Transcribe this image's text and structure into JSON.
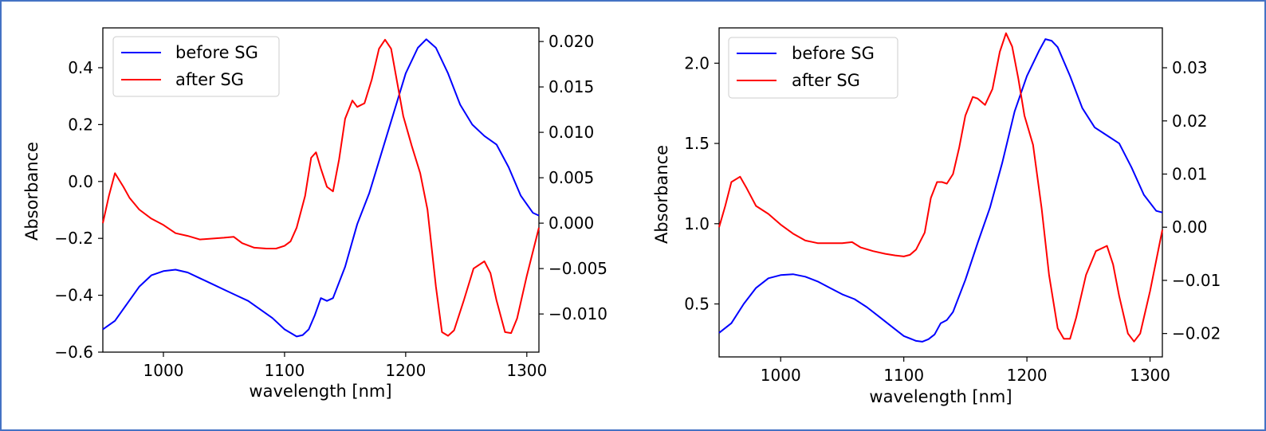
{
  "colors": {
    "frame": "#4472c4",
    "before": "#0000ff",
    "after": "#ff0000"
  },
  "chart_data": [
    {
      "type": "line",
      "title": "",
      "xlabel": "wavelength [nm]",
      "ylabel": "Absorbance",
      "y2label": "",
      "xlim": [
        950,
        1310
      ],
      "ylim": [
        -0.6,
        0.54
      ],
      "y2lim": [
        -0.0142,
        0.0215
      ],
      "x_ticks": [
        1000,
        1100,
        1200,
        1300
      ],
      "y_ticks": [
        -0.6,
        -0.4,
        -0.2,
        0.0,
        0.2,
        0.4
      ],
      "y_tick_labels": [
        "−0.6",
        "−0.4",
        "−0.2",
        "0.0",
        "0.2",
        "0.4"
      ],
      "y2_ticks": [
        -0.01,
        -0.005,
        0.0,
        0.005,
        0.01,
        0.015,
        0.02
      ],
      "y2_tick_labels": [
        "−0.010",
        "−0.005",
        "0.000",
        "0.005",
        "0.010",
        "0.015",
        "0.020"
      ],
      "legend": {
        "position": "top-left",
        "entries": [
          "before SG",
          "after SG"
        ]
      },
      "grid": false,
      "series": [
        {
          "name": "before SG",
          "axis": "left",
          "x": [
            950,
            960,
            970,
            980,
            990,
            1000,
            1010,
            1020,
            1030,
            1040,
            1050,
            1060,
            1070,
            1080,
            1090,
            1100,
            1110,
            1115,
            1120,
            1125,
            1130,
            1135,
            1140,
            1150,
            1160,
            1170,
            1180,
            1190,
            1200,
            1210,
            1217,
            1225,
            1235,
            1245,
            1255,
            1265,
            1275,
            1285,
            1295,
            1305,
            1310
          ],
          "y": [
            -0.52,
            -0.49,
            -0.43,
            -0.37,
            -0.33,
            -0.315,
            -0.31,
            -0.32,
            -0.34,
            -0.36,
            -0.38,
            -0.4,
            -0.42,
            -0.45,
            -0.48,
            -0.52,
            -0.545,
            -0.54,
            -0.52,
            -0.47,
            -0.41,
            -0.42,
            -0.41,
            -0.3,
            -0.15,
            -0.04,
            0.1,
            0.24,
            0.38,
            0.47,
            0.5,
            0.47,
            0.38,
            0.27,
            0.2,
            0.16,
            0.13,
            0.05,
            -0.05,
            -0.11,
            -0.12
          ]
        },
        {
          "name": "after SG",
          "axis": "right",
          "x": [
            950,
            955,
            960,
            967,
            972,
            980,
            990,
            1000,
            1010,
            1020,
            1030,
            1040,
            1050,
            1058,
            1065,
            1075,
            1085,
            1093,
            1100,
            1105,
            1110,
            1117,
            1122,
            1126,
            1130,
            1135,
            1140,
            1145,
            1150,
            1156,
            1160,
            1166,
            1172,
            1178,
            1183,
            1188,
            1193,
            1198,
            1205,
            1212,
            1218,
            1225,
            1230,
            1235,
            1240,
            1248,
            1256,
            1265,
            1270,
            1275,
            1282,
            1287,
            1292,
            1300,
            1310
          ],
          "y": [
            0.0,
            0.003,
            0.0055,
            0.004,
            0.0028,
            0.0015,
            0.0005,
            -0.0002,
            -0.0011,
            -0.0014,
            -0.0018,
            -0.0017,
            -0.0016,
            -0.0015,
            -0.0022,
            -0.0027,
            -0.0028,
            -0.0028,
            -0.0025,
            -0.002,
            -0.0005,
            0.003,
            0.0072,
            0.0078,
            0.006,
            0.004,
            0.0035,
            0.007,
            0.0115,
            0.0135,
            0.0128,
            0.0132,
            0.0158,
            0.0192,
            0.0202,
            0.0192,
            0.0155,
            0.0118,
            0.0085,
            0.0055,
            0.0015,
            -0.007,
            -0.012,
            -0.0124,
            -0.0118,
            -0.0085,
            -0.005,
            -0.0042,
            -0.0055,
            -0.0085,
            -0.012,
            -0.0121,
            -0.0105,
            -0.0058,
            -0.0005
          ]
        }
      ]
    },
    {
      "type": "line",
      "title": "",
      "xlabel": "wavelength [nm]",
      "ylabel": "Absorbance",
      "y2label": "",
      "xlim": [
        950,
        1310
      ],
      "ylim": [
        0.17,
        2.22
      ],
      "y2lim": [
        -0.0244,
        0.0375
      ],
      "x_ticks": [
        1000,
        1100,
        1200,
        1300
      ],
      "y_ticks": [
        0.5,
        1.0,
        1.5,
        2.0
      ],
      "y_tick_labels": [
        "0.5",
        "1.0",
        "1.5",
        "2.0"
      ],
      "y2_ticks": [
        -0.02,
        -0.01,
        0.0,
        0.01,
        0.02,
        0.03
      ],
      "y2_tick_labels": [
        "−0.02",
        "−0.01",
        "0.00",
        "0.01",
        "0.02",
        "0.03"
      ],
      "legend": {
        "position": "top-left",
        "entries": [
          "before SG",
          "after SG"
        ]
      },
      "grid": false,
      "series": [
        {
          "name": "before SG",
          "axis": "left",
          "x": [
            950,
            960,
            970,
            980,
            990,
            1000,
            1010,
            1020,
            1030,
            1040,
            1050,
            1060,
            1070,
            1080,
            1090,
            1100,
            1110,
            1115,
            1120,
            1125,
            1130,
            1135,
            1140,
            1150,
            1160,
            1170,
            1180,
            1190,
            1200,
            1210,
            1215,
            1220,
            1225,
            1235,
            1245,
            1255,
            1265,
            1275,
            1285,
            1295,
            1305,
            1310
          ],
          "y": [
            0.32,
            0.38,
            0.5,
            0.6,
            0.66,
            0.68,
            0.685,
            0.67,
            0.64,
            0.6,
            0.56,
            0.53,
            0.48,
            0.42,
            0.36,
            0.3,
            0.27,
            0.265,
            0.28,
            0.31,
            0.38,
            0.4,
            0.45,
            0.65,
            0.88,
            1.1,
            1.38,
            1.7,
            1.92,
            2.08,
            2.15,
            2.14,
            2.1,
            1.92,
            1.72,
            1.6,
            1.55,
            1.5,
            1.35,
            1.18,
            1.08,
            1.07
          ]
        },
        {
          "name": "after SG",
          "axis": "right",
          "x": [
            950,
            955,
            960,
            967,
            972,
            980,
            990,
            1000,
            1010,
            1020,
            1030,
            1040,
            1050,
            1058,
            1065,
            1075,
            1085,
            1093,
            1100,
            1105,
            1110,
            1117,
            1122,
            1127,
            1131,
            1135,
            1140,
            1145,
            1150,
            1156,
            1160,
            1166,
            1172,
            1178,
            1183,
            1188,
            1193,
            1198,
            1205,
            1212,
            1218,
            1225,
            1230,
            1235,
            1240,
            1248,
            1256,
            1265,
            1270,
            1275,
            1282,
            1287,
            1292,
            1300,
            1310
          ],
          "y": [
            0.0,
            0.004,
            0.0085,
            0.0095,
            0.0075,
            0.004,
            0.0025,
            0.0005,
            -0.0012,
            -0.0025,
            -0.003,
            -0.003,
            -0.003,
            -0.0028,
            -0.0038,
            -0.0045,
            -0.005,
            -0.0053,
            -0.0055,
            -0.0052,
            -0.0042,
            -0.001,
            0.0055,
            0.0085,
            0.0085,
            0.0082,
            0.01,
            0.015,
            0.021,
            0.0245,
            0.0242,
            0.023,
            0.026,
            0.033,
            0.0365,
            0.034,
            0.028,
            0.021,
            0.0155,
            0.0035,
            -0.009,
            -0.019,
            -0.021,
            -0.021,
            -0.017,
            -0.009,
            -0.0045,
            -0.0035,
            -0.007,
            -0.013,
            -0.02,
            -0.0215,
            -0.02,
            -0.012,
            -0.0005
          ]
        }
      ]
    }
  ]
}
